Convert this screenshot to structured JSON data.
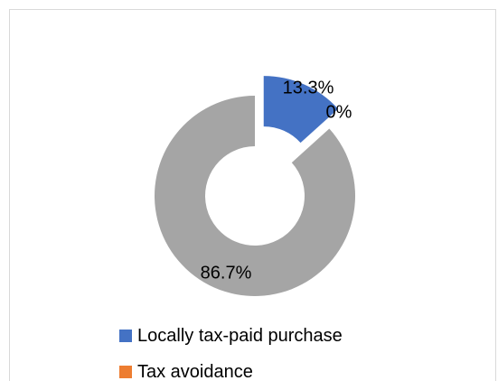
{
  "chart_data": {
    "type": "pie",
    "donut": true,
    "title": "",
    "slices": [
      {
        "name": "Locally tax-paid purchase",
        "value": 13.3,
        "label": "13.3%",
        "color": "#4472c4",
        "exploded": true
      },
      {
        "name": "Tax avoidance",
        "value": 0,
        "label": "0%",
        "color": "#ed7d31",
        "exploded": false
      },
      {
        "name": "",
        "value": 86.7,
        "label": "86.7%",
        "color": "#a5a5a5",
        "exploded": false
      }
    ],
    "legend": {
      "position": "bottom",
      "entries": [
        "Locally tax-paid purchase",
        "Tax avoidance"
      ]
    }
  }
}
